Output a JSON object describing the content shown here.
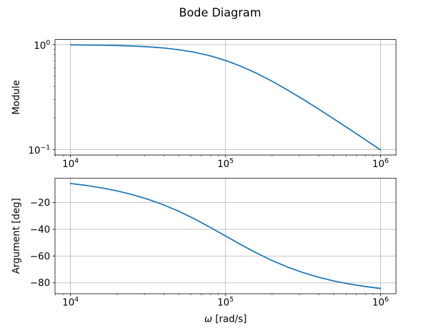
{
  "figure": {
    "title": "Bode Diagram",
    "background": "#ffffff",
    "line_color": "#1f77b4",
    "grid_color": "#b0b0b0",
    "spine_color": "#000000",
    "text_color": "#000000"
  },
  "chart_data": [
    {
      "name": "module",
      "type": "line",
      "title": "",
      "xlabel": "",
      "ylabel": "Module",
      "xscale": "log",
      "yscale": "log",
      "grid": true,
      "legend": "none",
      "xlim_log": [
        3.9,
        6.1
      ],
      "ylim_log": [
        -1.0522,
        0.0478
      ],
      "x_ticks": [
        {
          "value": 10000,
          "label": "10^4"
        },
        {
          "value": 100000,
          "label": "10^5"
        },
        {
          "value": 1000000,
          "label": "10^6"
        }
      ],
      "y_ticks": [
        {
          "value": 1,
          "label": "10^0"
        },
        {
          "value": 0.1,
          "label": "10^−1"
        }
      ],
      "series": [
        {
          "name": "module",
          "x": [
            10000,
            12589,
            15849,
            19953,
            25119,
            31623,
            39811,
            50119,
            63096,
            79433,
            100000,
            125893,
            158489,
            199526,
            251189,
            316228,
            398107,
            501187,
            630957,
            794328,
            1000000
          ],
          "y": [
            0.995,
            0.9921,
            0.9877,
            0.9807,
            0.9698,
            0.9535,
            0.9292,
            0.8941,
            0.8457,
            0.783,
            0.7071,
            0.6217,
            0.5337,
            0.4482,
            0.3699,
            0.3015,
            0.2437,
            0.1957,
            0.1566,
            0.1249,
            0.0995
          ]
        }
      ]
    },
    {
      "name": "argument",
      "type": "line",
      "title": "",
      "xlabel": "ω [rad/s]",
      "xlabel_parts": [
        {
          "text": "ω",
          "italic": true
        },
        {
          "text": " [rad/s]",
          "italic": false
        }
      ],
      "ylabel": "Argument [deg]",
      "xscale": "log",
      "yscale": "linear",
      "grid": true,
      "legend": "none",
      "xlim_log": [
        3.9,
        6.1
      ],
      "ylim": [
        -88.22,
        -1.78
      ],
      "x_ticks": [
        {
          "value": 10000,
          "label": "10^4"
        },
        {
          "value": 100000,
          "label": "10^5"
        },
        {
          "value": 1000000,
          "label": "10^6"
        }
      ],
      "y_ticks": [
        {
          "value": -20,
          "label": "−20"
        },
        {
          "value": -40,
          "label": "−40"
        },
        {
          "value": -60,
          "label": "−60"
        },
        {
          "value": -80,
          "label": "−80"
        }
      ],
      "series": [
        {
          "name": "argument",
          "x": [
            10000,
            12589,
            15849,
            19953,
            25119,
            31623,
            39811,
            50119,
            63096,
            79433,
            100000,
            125893,
            158489,
            199526,
            251189,
            316228,
            398107,
            501187,
            630957,
            794328,
            1000000
          ],
          "y": [
            -5.71,
            -7.18,
            -9.01,
            -11.28,
            -14.1,
            -17.55,
            -21.71,
            -26.62,
            -32.26,
            -38.46,
            -45,
            -51.54,
            -57.74,
            -63.38,
            -68.29,
            -72.45,
            -75.9,
            -78.72,
            -80.99,
            -82.82,
            -84.29
          ]
        }
      ]
    }
  ]
}
